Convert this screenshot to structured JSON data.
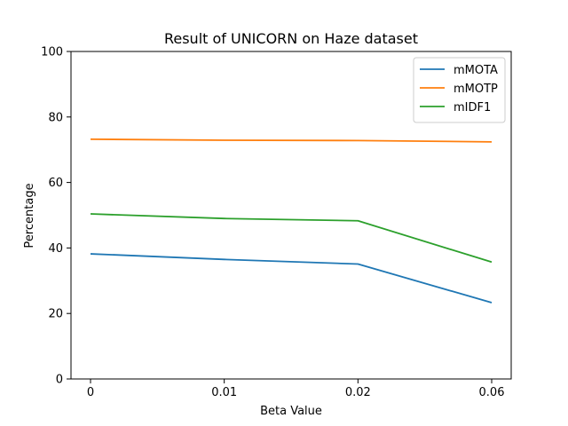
{
  "chart_data": {
    "type": "line",
    "title": "Result of UNICORN on Haze dataset",
    "xlabel": "Beta Value",
    "ylabel": "Percentage",
    "categories": [
      "0",
      "0.01",
      "0.02",
      "0.06"
    ],
    "ylim": [
      0,
      100
    ],
    "yticks": [
      0,
      20,
      40,
      60,
      80,
      100
    ],
    "grid": false,
    "legend_position": "top-right",
    "series": [
      {
        "name": "mMOTA",
        "color": "#1f77b4",
        "values": [
          38.2,
          36.5,
          35.1,
          23.3
        ]
      },
      {
        "name": "mMOTP",
        "color": "#ff7f0e",
        "values": [
          73.2,
          72.9,
          72.8,
          72.4
        ]
      },
      {
        "name": "mIDF1",
        "color": "#2ca02c",
        "values": [
          50.4,
          49.0,
          48.3,
          35.7
        ]
      }
    ]
  }
}
